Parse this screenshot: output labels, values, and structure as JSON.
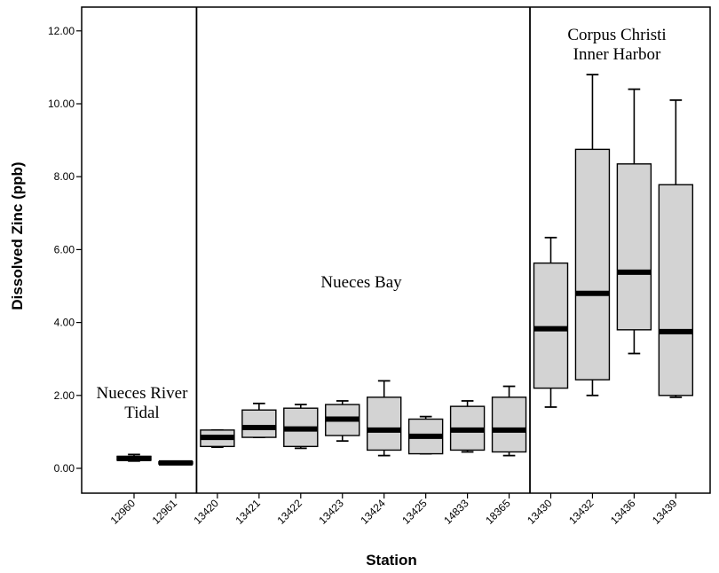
{
  "chart_data": {
    "type": "box",
    "title": "",
    "xlabel": "Station",
    "ylabel": "Dissolved Zinc (ppb)",
    "ylim": [
      -0.7,
      12.6
    ],
    "y_ticks": [
      "0.00",
      "2.00",
      "4.00",
      "6.00",
      "8.00",
      "10.00",
      "12.00"
    ],
    "y_tick_values": [
      0,
      2,
      4,
      6,
      8,
      10,
      12
    ],
    "grid": false,
    "categories": [
      "12960",
      "12961",
      "13420",
      "13421",
      "13422",
      "13423",
      "13424",
      "13425",
      "14833",
      "18365",
      "13430",
      "13432",
      "13436",
      "13439"
    ],
    "boxes": [
      {
        "station": "12960",
        "min": 0.2,
        "q1": 0.22,
        "median": 0.27,
        "q3": 0.33,
        "max": 0.38
      },
      {
        "station": "12961",
        "min": 0.12,
        "q1": 0.12,
        "median": 0.15,
        "q3": 0.18,
        "max": 0.18
      },
      {
        "station": "13420",
        "min": 0.58,
        "q1": 0.6,
        "median": 0.85,
        "q3": 1.05,
        "max": 1.05
      },
      {
        "station": "13421",
        "min": 0.85,
        "q1": 0.85,
        "median": 1.12,
        "q3": 1.6,
        "max": 1.78
      },
      {
        "station": "13422",
        "min": 0.55,
        "q1": 0.6,
        "median": 1.08,
        "q3": 1.65,
        "max": 1.75
      },
      {
        "station": "13423",
        "min": 0.75,
        "q1": 0.9,
        "median": 1.35,
        "q3": 1.75,
        "max": 1.85
      },
      {
        "station": "13424",
        "min": 0.35,
        "q1": 0.5,
        "median": 1.05,
        "q3": 1.95,
        "max": 2.4
      },
      {
        "station": "13425",
        "min": 0.4,
        "q1": 0.4,
        "median": 0.88,
        "q3": 1.35,
        "max": 1.42
      },
      {
        "station": "14833",
        "min": 0.45,
        "q1": 0.5,
        "median": 1.05,
        "q3": 1.7,
        "max": 1.85
      },
      {
        "station": "18365",
        "min": 0.35,
        "q1": 0.45,
        "median": 1.05,
        "q3": 1.95,
        "max": 2.25
      },
      {
        "station": "13430",
        "min": 1.68,
        "q1": 2.2,
        "median": 3.83,
        "q3": 5.63,
        "max": 6.33
      },
      {
        "station": "13432",
        "min": 2.0,
        "q1": 2.43,
        "median": 4.8,
        "q3": 8.75,
        "max": 10.8
      },
      {
        "station": "13436",
        "min": 3.15,
        "q1": 3.8,
        "median": 5.38,
        "q3": 8.35,
        "max": 10.4
      },
      {
        "station": "13439",
        "min": 1.95,
        "q1": 2.0,
        "median": 3.75,
        "q3": 7.78,
        "max": 10.1
      }
    ],
    "groups": [
      {
        "lines": [
          "Nueces River",
          "Tidal"
        ],
        "first": 0,
        "last": 1
      },
      {
        "lines": [
          "Nueces Bay"
        ],
        "first": 2,
        "last": 9
      },
      {
        "lines": [
          "Corpus Christi",
          "Inner Harbor"
        ],
        "first": 10,
        "last": 13
      }
    ],
    "colors": {
      "box_fill": "#d3d3d3",
      "line": "#000000",
      "background": "#ffffff"
    }
  }
}
